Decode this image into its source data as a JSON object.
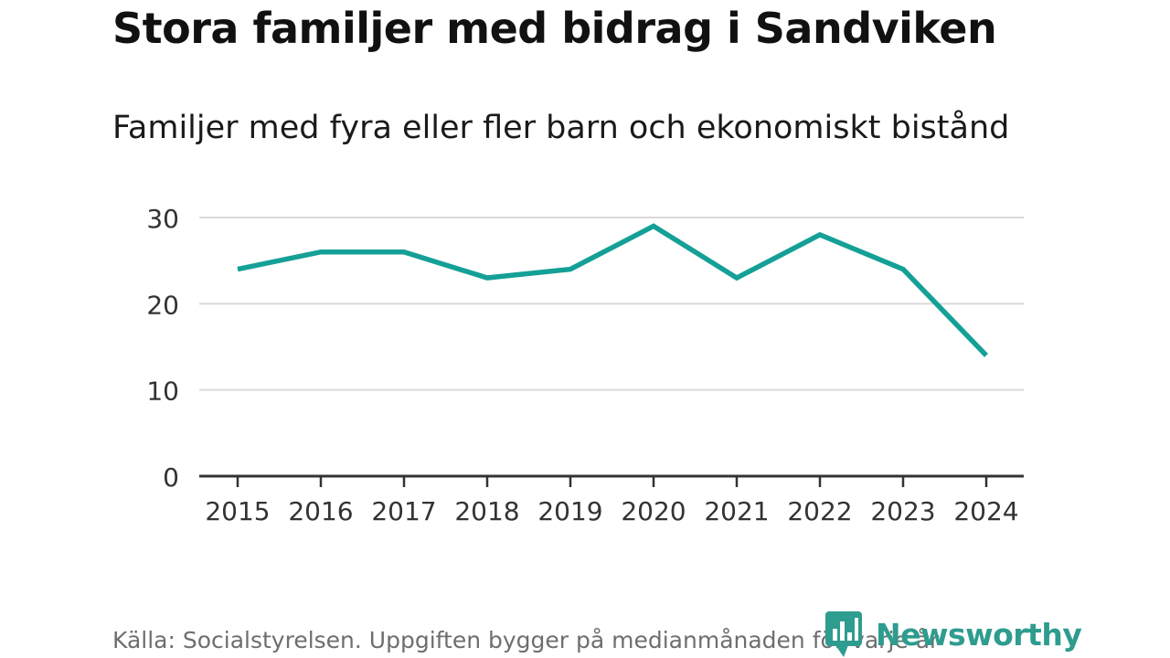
{
  "title": "Stora familjer med bidrag i Sandviken",
  "subtitle": "Familjer med fyra eller fler barn och ekonomiskt bistånd",
  "source": "Källa: Socialstyrelsen. Uppgiften bygger på medianmånaden för varje år",
  "brand": {
    "name": "Newsworthy"
  },
  "colors": {
    "line": "#14a096",
    "grid": "#d9d9d9",
    "axis": "#333333",
    "brand": "#2e9c8f"
  },
  "chart_data": {
    "type": "line",
    "title": "Familjer med fyra eller fler barn och ekonomiskt bistånd",
    "xlabel": "",
    "ylabel": "",
    "categories": [
      "2015",
      "2016",
      "2017",
      "2018",
      "2019",
      "2020",
      "2021",
      "2022",
      "2023",
      "2024"
    ],
    "series": [
      {
        "name": "Familjer",
        "values": [
          24,
          26,
          26,
          23,
          24,
          29,
          23,
          28,
          24,
          14
        ]
      }
    ],
    "ylim": [
      0,
      30
    ],
    "yticks": [
      0,
      10,
      20,
      30
    ],
    "grid": true,
    "legend": "none"
  }
}
